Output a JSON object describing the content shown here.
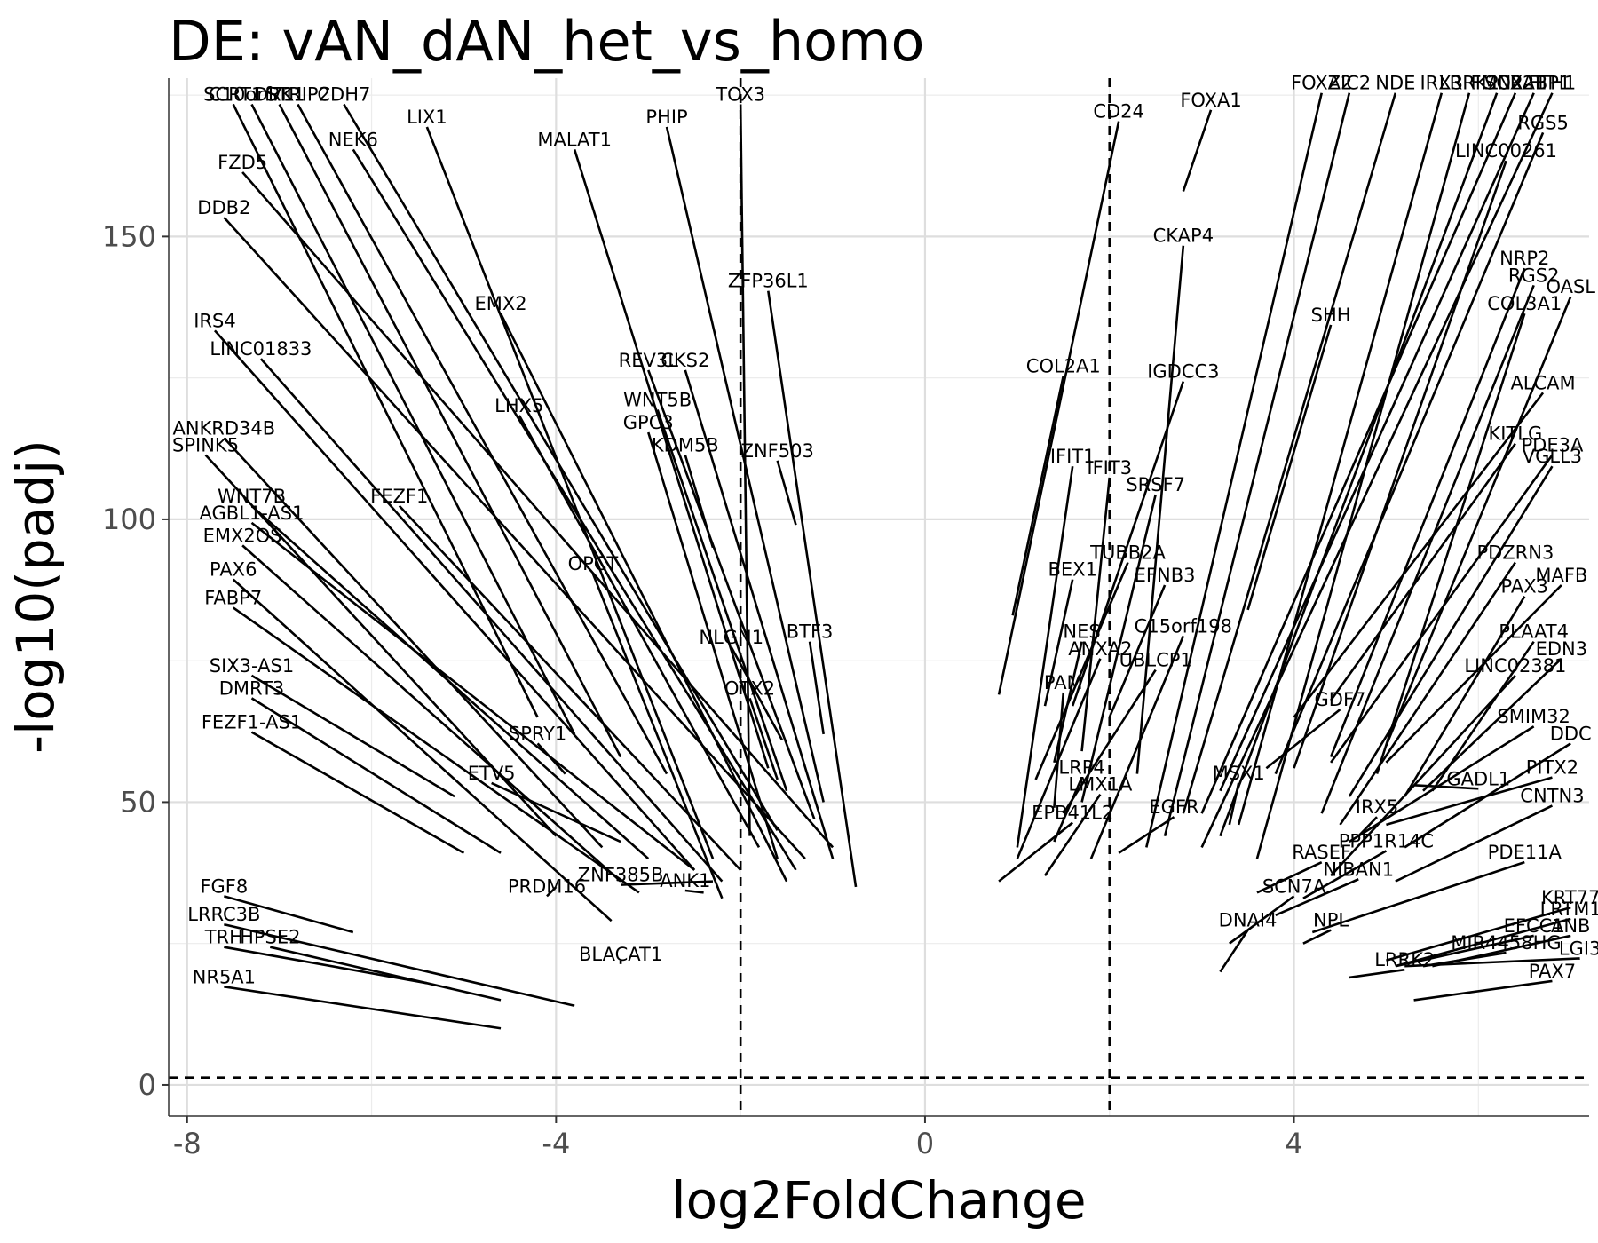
{
  "chart_data": {
    "type": "scatter",
    "title": "DE: vAN_dAN_het_vs_homo",
    "xlabel": "log2FoldChange",
    "ylabel": "-log10(padj)",
    "xlim": [
      -8.2,
      7.2
    ],
    "ylim": [
      -5.5,
      178
    ],
    "x_ticks": [
      {
        "value": -8,
        "label": "-8"
      },
      {
        "value": -4,
        "label": "-4"
      },
      {
        "value": 0,
        "label": "0"
      },
      {
        "value": 4,
        "label": "4"
      }
    ],
    "y_ticks": [
      {
        "value": 0,
        "label": "0"
      },
      {
        "value": 50,
        "label": "50"
      },
      {
        "value": 100,
        "label": "100"
      },
      {
        "value": 150,
        "label": "150"
      }
    ],
    "grid": true,
    "thresholds": {
      "log2fc": [
        -2,
        2
      ],
      "padj_neglog10": 1.3
    },
    "points": [
      {
        "gene": "SCRT1",
        "x": -4.2,
        "y": 65,
        "lx": -7.5,
        "ly": 174
      },
      {
        "gene": "C10orf71",
        "x": -3.8,
        "y": 62,
        "lx": -7.3,
        "ly": 174
      },
      {
        "gene": "DRK1",
        "x": -3.3,
        "y": 58,
        "lx": -7.0,
        "ly": 174
      },
      {
        "gene": "STRIP2",
        "x": -2.8,
        "y": 55,
        "lx": -6.8,
        "ly": 174
      },
      {
        "gene": "CDH7",
        "x": -1.6,
        "y": 45,
        "lx": -6.3,
        "ly": 174
      },
      {
        "gene": "LIX1",
        "x": -2.3,
        "y": 40,
        "lx": -5.4,
        "ly": 170
      },
      {
        "gene": "NEK6",
        "x": -1.4,
        "y": 38,
        "lx": -6.2,
        "ly": 166
      },
      {
        "gene": "MALAT1",
        "x": -1.7,
        "y": 56,
        "lx": -3.8,
        "ly": 166
      },
      {
        "gene": "PHIP",
        "x": -1.1,
        "y": 50,
        "lx": -2.8,
        "ly": 170
      },
      {
        "gene": "TOX3",
        "x": -1.9,
        "y": 44,
        "lx": -2.0,
        "ly": 174
      },
      {
        "gene": "FZD5",
        "x": -1.0,
        "y": 42,
        "lx": -7.4,
        "ly": 162
      },
      {
        "gene": "DDB2",
        "x": -1.3,
        "y": 40,
        "lx": -7.6,
        "ly": 154
      },
      {
        "gene": "ZFP36L1",
        "x": -0.75,
        "y": 35,
        "lx": -1.7,
        "ly": 141
      },
      {
        "gene": "EMX2",
        "x": -1.5,
        "y": 36,
        "lx": -4.6,
        "ly": 137
      },
      {
        "gene": "IRS4",
        "x": -2.5,
        "y": 38,
        "lx": -7.7,
        "ly": 134
      },
      {
        "gene": "LINC01833",
        "x": -2.2,
        "y": 36,
        "lx": -7.2,
        "ly": 129
      },
      {
        "gene": "REV3L",
        "x": -1.2,
        "y": 47,
        "lx": -3.0,
        "ly": 127
      },
      {
        "gene": "CKS2",
        "x": -1.0,
        "y": 40,
        "lx": -2.6,
        "ly": 127
      },
      {
        "gene": "WNT5B",
        "x": -1.5,
        "y": 52,
        "lx": -2.9,
        "ly": 120
      },
      {
        "gene": "LHX5",
        "x": -1.8,
        "y": 42,
        "lx": -4.4,
        "ly": 119
      },
      {
        "gene": "GPC3",
        "x": -1.6,
        "y": 40,
        "lx": -3.0,
        "ly": 116
      },
      {
        "gene": "ANKRD34B",
        "x": -3.5,
        "y": 42,
        "lx": -7.6,
        "ly": 115
      },
      {
        "gene": "KDM5B",
        "x": -2.3,
        "y": 95,
        "lx": -2.6,
        "ly": 112
      },
      {
        "gene": "ZNF503",
        "x": -1.4,
        "y": 99,
        "lx": -1.6,
        "ly": 111
      },
      {
        "gene": "SPINK5",
        "x": -4.0,
        "y": 44,
        "lx": -7.8,
        "ly": 112
      },
      {
        "gene": "WNT7B",
        "x": -3.0,
        "y": 40,
        "lx": -7.3,
        "ly": 103
      },
      {
        "gene": "FEZF1",
        "x": -2.0,
        "y": 38,
        "lx": -5.7,
        "ly": 103
      },
      {
        "gene": "AGBL1-AS1",
        "x": -2.5,
        "y": 38,
        "lx": -7.3,
        "ly": 100
      },
      {
        "gene": "EMX2OS",
        "x": -3.3,
        "y": 36,
        "lx": -7.4,
        "ly": 96
      },
      {
        "gene": "OPCT",
        "x": -2.2,
        "y": 33,
        "lx": -3.6,
        "ly": 91
      },
      {
        "gene": "PAX6",
        "x": -3.4,
        "y": 29,
        "lx": -7.5,
        "ly": 90
      },
      {
        "gene": "FABP7",
        "x": -3.1,
        "y": 34,
        "lx": -7.5,
        "ly": 85
      },
      {
        "gene": "BTF3",
        "x": -1.1,
        "y": 62,
        "lx": -1.25,
        "ly": 79
      },
      {
        "gene": "NLGN1",
        "x": -1.55,
        "y": 61,
        "lx": -2.1,
        "ly": 78
      },
      {
        "gene": "SIX3-AS1",
        "x": -5.1,
        "y": 51,
        "lx": -7.3,
        "ly": 73
      },
      {
        "gene": "DMRT3",
        "x": -4.6,
        "y": 41,
        "lx": -7.3,
        "ly": 69
      },
      {
        "gene": "OTX2",
        "x": -1.6,
        "y": 54,
        "lx": -1.9,
        "ly": 69
      },
      {
        "gene": "FEZF1-AS1",
        "x": -5.0,
        "y": 41,
        "lx": -7.3,
        "ly": 63
      },
      {
        "gene": "SPRY1",
        "x": -3.9,
        "y": 55,
        "lx": -4.2,
        "ly": 61
      },
      {
        "gene": "ETV5",
        "x": -3.3,
        "y": 43,
        "lx": -4.7,
        "ly": 54
      },
      {
        "gene": "ZNF385B",
        "x": -2.3,
        "y": 36,
        "lx": -3.3,
        "ly": 36
      },
      {
        "gene": "ANK1",
        "x": -2.4,
        "y": 34,
        "lx": -2.6,
        "ly": 35
      },
      {
        "gene": "PRDM16",
        "x": -4.0,
        "y": 35,
        "lx": -4.1,
        "ly": 34
      },
      {
        "gene": "FGF8",
        "x": -6.2,
        "y": 27,
        "lx": -7.6,
        "ly": 34
      },
      {
        "gene": "LRRC3B",
        "x": -3.8,
        "y": 14,
        "lx": -7.6,
        "ly": 29
      },
      {
        "gene": "HPSE2",
        "x": -4.6,
        "y": 15,
        "lx": -7.1,
        "ly": 25
      },
      {
        "gene": "TRH",
        "x": -5.4,
        "y": 18,
        "lx": -7.6,
        "ly": 25
      },
      {
        "gene": "BLACAT1",
        "x": -3.3,
        "y": 22,
        "lx": -3.3,
        "ly": 22
      },
      {
        "gene": "NR5A1",
        "x": -4.6,
        "y": 10,
        "lx": -7.6,
        "ly": 18
      },
      {
        "gene": "CD24",
        "x": 0.8,
        "y": 69,
        "lx": 2.1,
        "ly": 171
      },
      {
        "gene": "FOXA1",
        "x": 2.8,
        "y": 158,
        "lx": 3.1,
        "ly": 173
      },
      {
        "gene": "FOXA2",
        "x": 2.4,
        "y": 42,
        "lx": 4.3,
        "ly": 176
      },
      {
        "gene": "ZIC2",
        "x": 2.6,
        "y": 44,
        "lx": 4.6,
        "ly": 176
      },
      {
        "gene": "NDE",
        "x": 2.8,
        "y": 48,
        "lx": 5.1,
        "ly": 176
      },
      {
        "gene": "IRX3",
        "x": 3.4,
        "y": 46,
        "lx": 5.6,
        "ly": 176
      },
      {
        "gene": "LRRK2",
        "x": 3.6,
        "y": 40,
        "lx": 5.9,
        "ly": 176
      },
      {
        "gene": "FMN2",
        "x": 3.2,
        "y": 44,
        "lx": 6.2,
        "ly": 176
      },
      {
        "gene": "SOX21",
        "x": 3.0,
        "y": 48,
        "lx": 6.4,
        "ly": 176
      },
      {
        "gene": "CRABP1",
        "x": 3.2,
        "y": 52,
        "lx": 6.6,
        "ly": 176
      },
      {
        "gene": "FTH1",
        "x": 3.0,
        "y": 42,
        "lx": 6.8,
        "ly": 176
      },
      {
        "gene": "RGS5",
        "x": 3.8,
        "y": 55,
        "lx": 6.7,
        "ly": 169
      },
      {
        "gene": "LINC00261",
        "x": 4.0,
        "y": 56,
        "lx": 6.3,
        "ly": 164
      },
      {
        "gene": "CKAP4",
        "x": 2.3,
        "y": 55,
        "lx": 2.8,
        "ly": 149
      },
      {
        "gene": "NRP2",
        "x": 4.4,
        "y": 58,
        "lx": 6.5,
        "ly": 145
      },
      {
        "gene": "RGS2",
        "x": 4.3,
        "y": 48,
        "lx": 6.6,
        "ly": 142
      },
      {
        "gene": "OASL",
        "x": 5.0,
        "y": 60,
        "lx": 7.0,
        "ly": 140
      },
      {
        "gene": "COL3A1",
        "x": 4.9,
        "y": 55,
        "lx": 6.5,
        "ly": 137
      },
      {
        "gene": "SHH",
        "x": 3.5,
        "y": 84,
        "lx": 4.4,
        "ly": 135
      },
      {
        "gene": "COL2A1",
        "x": 0.95,
        "y": 83,
        "lx": 1.5,
        "ly": 126
      },
      {
        "gene": "IGDCC3",
        "x": 1.6,
        "y": 67,
        "lx": 2.8,
        "ly": 125
      },
      {
        "gene": "ALCAM",
        "x": 4.0,
        "y": 65,
        "lx": 6.7,
        "ly": 123
      },
      {
        "gene": "KITLG",
        "x": 4.4,
        "y": 68,
        "lx": 6.4,
        "ly": 114
      },
      {
        "gene": "PDE3A",
        "x": 4.4,
        "y": 57,
        "lx": 6.8,
        "ly": 112
      },
      {
        "gene": "IFIT1",
        "x": 1.0,
        "y": 42,
        "lx": 1.6,
        "ly": 110
      },
      {
        "gene": "VGLL3",
        "x": 4.6,
        "y": 51,
        "lx": 6.8,
        "ly": 110
      },
      {
        "gene": "IFIT3",
        "x": 1.7,
        "y": 59,
        "lx": 2.0,
        "ly": 108
      },
      {
        "gene": "SRSF7",
        "x": 1.7,
        "y": 50,
        "lx": 2.5,
        "ly": 105
      },
      {
        "gene": "TUBB2A",
        "x": 1.2,
        "y": 54,
        "lx": 2.2,
        "ly": 93
      },
      {
        "gene": "PDZRN3",
        "x": 4.5,
        "y": 46,
        "lx": 6.4,
        "ly": 93
      },
      {
        "gene": "BEX1",
        "x": 1.3,
        "y": 67,
        "lx": 1.6,
        "ly": 90
      },
      {
        "gene": "EFNB3",
        "x": 2.0,
        "y": 65,
        "lx": 2.6,
        "ly": 89
      },
      {
        "gene": "MAFB",
        "x": 5.0,
        "y": 57,
        "lx": 6.9,
        "ly": 89
      },
      {
        "gene": "PAX3",
        "x": 5.2,
        "y": 51,
        "lx": 6.5,
        "ly": 87
      },
      {
        "gene": "C15orf198",
        "x": 1.8,
        "y": 40,
        "lx": 2.8,
        "ly": 80
      },
      {
        "gene": "PLAAT4",
        "x": 5.5,
        "y": 52,
        "lx": 6.6,
        "ly": 79
      },
      {
        "gene": "NES",
        "x": 1.4,
        "y": 57,
        "lx": 1.7,
        "ly": 79
      },
      {
        "gene": "ANXA2",
        "x": 1.0,
        "y": 40,
        "lx": 1.9,
        "ly": 76
      },
      {
        "gene": "EDN3",
        "x": 5.4,
        "y": 52,
        "lx": 6.9,
        "ly": 76
      },
      {
        "gene": "UBLCP1",
        "x": 1.5,
        "y": 48,
        "lx": 2.5,
        "ly": 74
      },
      {
        "gene": "LINC02381",
        "x": 4.4,
        "y": 37,
        "lx": 6.4,
        "ly": 73
      },
      {
        "gene": "PAM",
        "x": 1.4,
        "y": 49,
        "lx": 1.5,
        "ly": 70
      },
      {
        "gene": "GDF7",
        "x": 3.7,
        "y": 56,
        "lx": 4.5,
        "ly": 67
      },
      {
        "gene": "SMIM32",
        "x": 4.6,
        "y": 43,
        "lx": 6.6,
        "ly": 64
      },
      {
        "gene": "DDC",
        "x": 5.2,
        "y": 42,
        "lx": 7.0,
        "ly": 61
      },
      {
        "gene": "GADL1",
        "x": 5.3,
        "y": 53,
        "lx": 6.0,
        "ly": 53
      },
      {
        "gene": "PITX2",
        "x": 5.0,
        "y": 46,
        "lx": 6.8,
        "ly": 55
      },
      {
        "gene": "LRP4",
        "x": 1.4,
        "y": 43,
        "lx": 1.7,
        "ly": 55
      },
      {
        "gene": "MSX1",
        "x": 3.3,
        "y": 46,
        "lx": 3.4,
        "ly": 54
      },
      {
        "gene": "LMX1A",
        "x": 1.3,
        "y": 37,
        "lx": 1.9,
        "ly": 52
      },
      {
        "gene": "CNTN3",
        "x": 5.1,
        "y": 36,
        "lx": 6.8,
        "ly": 50
      },
      {
        "gene": "IRX5",
        "x": 4.7,
        "y": 44,
        "lx": 4.9,
        "ly": 48
      },
      {
        "gene": "EGFR",
        "x": 2.1,
        "y": 41,
        "lx": 2.7,
        "ly": 48
      },
      {
        "gene": "EPB41L2",
        "x": 0.8,
        "y": 36,
        "lx": 1.6,
        "ly": 47
      },
      {
        "gene": "RASEF",
        "x": 3.6,
        "y": 34,
        "lx": 4.3,
        "ly": 40
      },
      {
        "gene": "PPP1R14C",
        "x": 4.1,
        "y": 33,
        "lx": 5.0,
        "ly": 42
      },
      {
        "gene": "NIBAN1",
        "x": 3.8,
        "y": 30,
        "lx": 4.7,
        "ly": 37
      },
      {
        "gene": "PDE11A",
        "x": 4.2,
        "y": 27,
        "lx": 6.5,
        "ly": 40
      },
      {
        "gene": "SCN7A",
        "x": 3.3,
        "y": 25,
        "lx": 4.0,
        "ly": 34
      },
      {
        "gene": "KRT77",
        "x": 5.0,
        "y": 22,
        "lx": 7.0,
        "ly": 32
      },
      {
        "gene": "LRTM1",
        "x": 5.1,
        "y": 21,
        "lx": 7.0,
        "ly": 30
      },
      {
        "gene": "DNAI4",
        "x": 3.2,
        "y": 20,
        "lx": 3.5,
        "ly": 28
      },
      {
        "gene": "NPL",
        "x": 4.1,
        "y": 25,
        "lx": 4.4,
        "ly": 28
      },
      {
        "gene": "EFCC1",
        "x": 5.1,
        "y": 21,
        "lx": 6.6,
        "ly": 27
      },
      {
        "gene": "ANB",
        "x": 5.5,
        "y": 21,
        "lx": 7.0,
        "ly": 27
      },
      {
        "gene": "MIR4458HG",
        "x": 5.4,
        "y": 21,
        "lx": 6.3,
        "ly": 24
      },
      {
        "gene": "LGI3",
        "x": 5.2,
        "y": 21,
        "lx": 7.1,
        "ly": 23
      },
      {
        "gene": "LRRK2",
        "x": 4.6,
        "y": 19,
        "lx": 5.2,
        "ly": 21
      },
      {
        "gene": "PAX7",
        "x": 5.3,
        "y": 15,
        "lx": 6.8,
        "ly": 19
      }
    ]
  }
}
